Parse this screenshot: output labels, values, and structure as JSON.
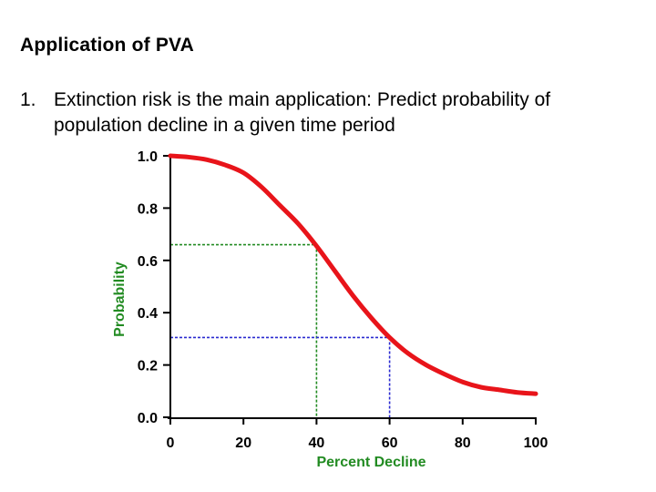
{
  "slide": {
    "title": "Application of PVA",
    "bullet_number": "1.",
    "bullet_text": "Extinction risk is the main application: Predict probability of population decline in a given time period"
  },
  "chart_data": {
    "type": "line",
    "xlabel": "Percent Decline",
    "ylabel": "Probability",
    "xlim": [
      0,
      100
    ],
    "ylim": [
      0,
      1.0
    ],
    "x_ticks": [
      "0",
      "20",
      "40",
      "60",
      "80",
      "100"
    ],
    "y_ticks": [
      "0.0",
      "0.2",
      "0.4",
      "0.6",
      "0.8",
      "1.0"
    ],
    "series": [
      {
        "color": "#e8141a",
        "x": [
          0,
          5,
          10,
          15,
          20,
          25,
          30,
          35,
          40,
          45,
          50,
          55,
          60,
          65,
          70,
          75,
          80,
          85,
          90,
          95,
          100
        ],
        "y": [
          1.0,
          0.995,
          0.985,
          0.965,
          0.935,
          0.88,
          0.81,
          0.74,
          0.655,
          0.56,
          0.465,
          0.38,
          0.305,
          0.245,
          0.2,
          0.165,
          0.135,
          0.115,
          0.105,
          0.095,
          0.09
        ]
      }
    ],
    "reference_lines": [
      {
        "x": 40,
        "y": 0.66,
        "color": "#228b22"
      },
      {
        "x": 60,
        "y": 0.305,
        "color": "#2a2ad0"
      }
    ],
    "grid": false
  }
}
